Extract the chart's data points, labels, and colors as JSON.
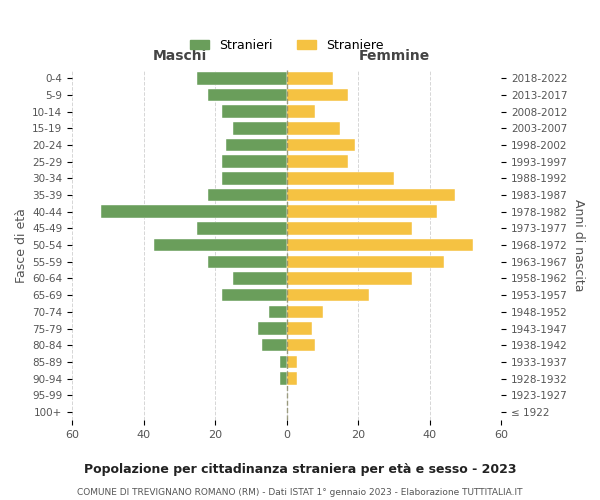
{
  "age_groups": [
    "100+",
    "95-99",
    "90-94",
    "85-89",
    "80-84",
    "75-79",
    "70-74",
    "65-69",
    "60-64",
    "55-59",
    "50-54",
    "45-49",
    "40-44",
    "35-39",
    "30-34",
    "25-29",
    "20-24",
    "15-19",
    "10-14",
    "5-9",
    "0-4"
  ],
  "birth_years": [
    "≤ 1922",
    "1923-1927",
    "1928-1932",
    "1933-1937",
    "1938-1942",
    "1943-1947",
    "1948-1952",
    "1953-1957",
    "1958-1962",
    "1963-1967",
    "1968-1972",
    "1973-1977",
    "1978-1982",
    "1983-1987",
    "1988-1992",
    "1993-1997",
    "1998-2002",
    "2003-2007",
    "2008-2012",
    "2013-2017",
    "2018-2022"
  ],
  "maschi": [
    0,
    0,
    2,
    2,
    7,
    8,
    5,
    18,
    15,
    22,
    37,
    25,
    52,
    22,
    18,
    18,
    17,
    15,
    18,
    22,
    25
  ],
  "femmine": [
    0,
    0,
    3,
    3,
    8,
    7,
    10,
    23,
    35,
    44,
    52,
    35,
    42,
    47,
    30,
    17,
    19,
    15,
    8,
    17,
    13
  ],
  "color_maschi": "#6a9e5b",
  "color_femmine": "#f5c242",
  "title": "Popolazione per cittadinanza straniera per età e sesso - 2023",
  "subtitle": "COMUNE DI TREVIGNANO ROMANO (RM) - Dati ISTAT 1° gennaio 2023 - Elaborazione TUTTITALIA.IT",
  "xlabel_maschi": "Maschi",
  "xlabel_femmine": "Femmine",
  "ylabel_left": "Fasce di età",
  "ylabel_right": "Anni di nascita",
  "legend_maschi": "Stranieri",
  "legend_femmine": "Straniere",
  "xlim": 60,
  "background_color": "#ffffff",
  "grid_color": "#cccccc"
}
